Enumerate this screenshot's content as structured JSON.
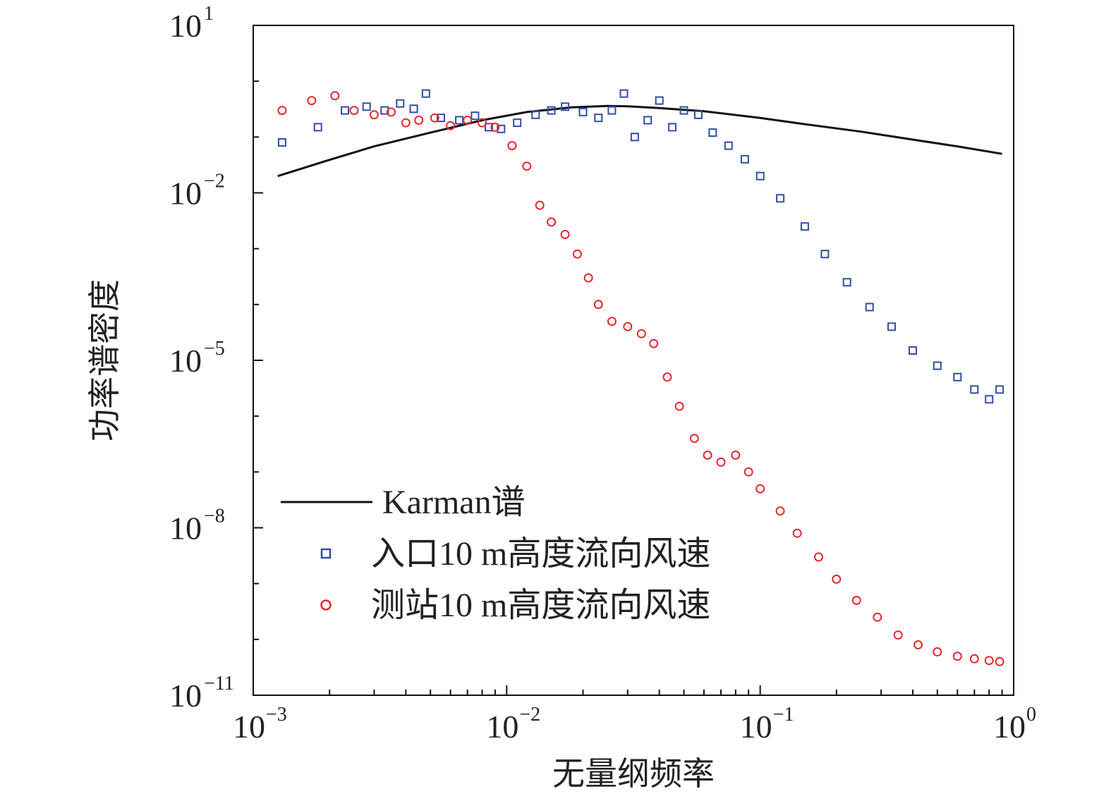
{
  "chart_data": {
    "type": "scatter",
    "x_scale": "log",
    "y_scale": "log",
    "xlim": [
      0.001,
      1
    ],
    "ylim": [
      1e-11,
      10
    ],
    "xlabel": "无量纲频率",
    "ylabel": "功率谱密度",
    "x_ticks": [
      {
        "value": 0.001,
        "base": "10",
        "exp": "−3"
      },
      {
        "value": 0.01,
        "base": "10",
        "exp": "−2"
      },
      {
        "value": 0.1,
        "base": "10",
        "exp": "−1"
      },
      {
        "value": 1,
        "base": "10",
        "exp": "0"
      }
    ],
    "y_ticks": [
      {
        "value": 10,
        "base": "10",
        "exp": "1"
      },
      {
        "value": 0.01,
        "base": "10",
        "exp": "−2"
      },
      {
        "value": 1e-05,
        "base": "10",
        "exp": "−5"
      },
      {
        "value": 1e-08,
        "base": "10",
        "exp": "−8"
      },
      {
        "value": 1e-11,
        "base": "10",
        "exp": "−11"
      }
    ],
    "legend_position": "lower-left",
    "series": [
      {
        "name": "Karman谱",
        "kind": "line",
        "color": "#111111",
        "x": [
          0.00125,
          0.002,
          0.003,
          0.005,
          0.008,
          0.012,
          0.018,
          0.025,
          0.03,
          0.04,
          0.06,
          0.1,
          0.15,
          0.25,
          0.4,
          0.6,
          0.9
        ],
        "y": [
          0.02,
          0.039,
          0.068,
          0.12,
          0.2,
          0.28,
          0.34,
          0.36,
          0.355,
          0.33,
          0.29,
          0.22,
          0.17,
          0.125,
          0.09,
          0.068,
          0.05
        ]
      },
      {
        "name": "入口10 m高度流向风速",
        "kind": "scatter",
        "marker": "square",
        "color": "#2f4fa6",
        "x": [
          0.0013,
          0.0018,
          0.0023,
          0.0028,
          0.0033,
          0.0038,
          0.0043,
          0.0048,
          0.0055,
          0.0065,
          0.0075,
          0.0085,
          0.0095,
          0.011,
          0.013,
          0.015,
          0.017,
          0.02,
          0.023,
          0.026,
          0.029,
          0.032,
          0.036,
          0.04,
          0.045,
          0.05,
          0.057,
          0.065,
          0.075,
          0.087,
          0.1,
          0.12,
          0.15,
          0.18,
          0.22,
          0.27,
          0.33,
          0.4,
          0.5,
          0.6,
          0.7,
          0.8,
          0.88
        ],
        "y": [
          0.08,
          0.15,
          0.3,
          0.35,
          0.3,
          0.4,
          0.32,
          0.6,
          0.22,
          0.2,
          0.24,
          0.15,
          0.14,
          0.18,
          0.25,
          0.3,
          0.35,
          0.28,
          0.22,
          0.3,
          0.6,
          0.1,
          0.2,
          0.45,
          0.15,
          0.3,
          0.25,
          0.12,
          0.07,
          0.04,
          0.02,
          0.008,
          0.0025,
          0.0008,
          0.00025,
          9e-05,
          4e-05,
          1.5e-05,
          8e-06,
          5e-06,
          3e-06,
          2e-06,
          3e-06
        ]
      },
      {
        "name": "测站10 m高度流向风速",
        "kind": "scatter",
        "marker": "circle",
        "color": "#e8262c",
        "x": [
          0.0013,
          0.0017,
          0.0021,
          0.0025,
          0.003,
          0.0035,
          0.004,
          0.0045,
          0.0052,
          0.006,
          0.007,
          0.008,
          0.009,
          0.0105,
          0.012,
          0.0135,
          0.015,
          0.017,
          0.019,
          0.021,
          0.023,
          0.026,
          0.03,
          0.034,
          0.038,
          0.043,
          0.048,
          0.055,
          0.062,
          0.07,
          0.08,
          0.09,
          0.1,
          0.12,
          0.14,
          0.17,
          0.2,
          0.24,
          0.29,
          0.35,
          0.42,
          0.5,
          0.6,
          0.7,
          0.8,
          0.88
        ],
        "y": [
          0.3,
          0.45,
          0.55,
          0.3,
          0.25,
          0.28,
          0.18,
          0.2,
          0.22,
          0.16,
          0.2,
          0.18,
          0.15,
          0.07,
          0.03,
          0.006,
          0.003,
          0.0018,
          0.0008,
          0.0003,
          0.0001,
          5e-05,
          4e-05,
          3e-05,
          2e-05,
          5e-06,
          1.5e-06,
          4e-07,
          2e-07,
          1.5e-07,
          2e-07,
          1e-07,
          5e-08,
          2e-08,
          8e-09,
          3e-09,
          1.2e-09,
          5e-10,
          2.5e-10,
          1.2e-10,
          8e-11,
          6e-11,
          5e-11,
          4.5e-11,
          4.2e-11,
          4e-11
        ]
      }
    ]
  }
}
